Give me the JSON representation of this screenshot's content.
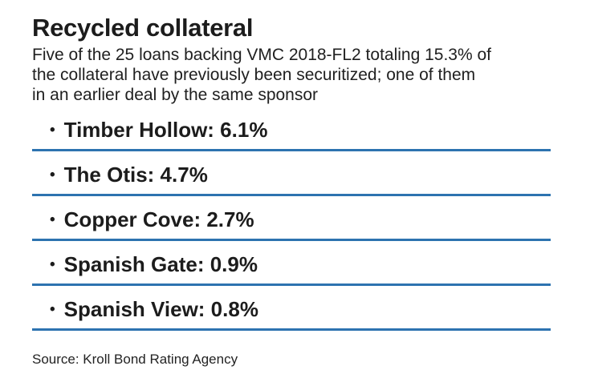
{
  "header": {
    "title": "Recycled collateral",
    "subtitle_lines": [
      "Five of the 25 loans backing VMC 2018-FL2 totaling 15.3% of",
      "the collateral have previously been securitized; one of them",
      "in an earlier deal by the same sponsor"
    ]
  },
  "list": {
    "bullet": "•",
    "items": [
      {
        "name": "Timber Hollow",
        "value": "6.1%",
        "label": "Timber Hollow: 6.1%"
      },
      {
        "name": "The Otis",
        "value": "4.7%",
        "label": "The Otis: 4.7%"
      },
      {
        "name": "Copper Cove",
        "value": "2.7%",
        "label": "Copper Cove: 2.7%"
      },
      {
        "name": "Spanish Gate",
        "value": "0.9%",
        "label": "Spanish Gate: 0.9%"
      },
      {
        "name": "Spanish View",
        "value": "0.8%",
        "label": "Spanish View: 0.8%"
      }
    ]
  },
  "footer": {
    "source": "Source: Kroll Bond Rating Agency"
  },
  "colors": {
    "rule_blue": "#2d73b0",
    "text": "#1c1c1c"
  },
  "chart_data": {
    "type": "table",
    "title": "Recycled collateral",
    "subtitle": "Five of the 25 loans backing VMC 2018-FL2 totaling 15.3% of the collateral have previously been securitized; one of them in an earlier deal by the same sponsor",
    "categories": [
      "Timber Hollow",
      "The Otis",
      "Copper Cove",
      "Spanish Gate",
      "Spanish View"
    ],
    "values": [
      6.1,
      4.7,
      2.7,
      0.9,
      0.8
    ],
    "unit": "%",
    "source": "Source: Kroll Bond Rating Agency",
    "layout_hints": {
      "style": "bulleted list with horizontal blue rules under each entry",
      "rule_color": "#2d73b0"
    }
  }
}
